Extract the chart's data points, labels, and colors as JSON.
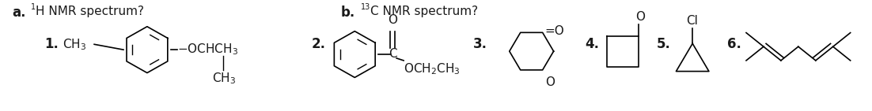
{
  "background_color": "#ffffff",
  "fig_width": 11.02,
  "fig_height": 1.41,
  "dpi": 100,
  "label_a": "a.",
  "label_a_superscript": "1",
  "label_a_text": "H NMR spectrum?",
  "label_b": "b.",
  "label_b_superscript": "13",
  "label_b_text": "C NMR spectrum?",
  "num1": "1.",
  "num2": "2.",
  "num3": "3.",
  "num4": "4.",
  "num5": "5.",
  "num6": "6.",
  "font_size_main": 11,
  "font_size_label": 12,
  "text_color": "#1a1a1a"
}
